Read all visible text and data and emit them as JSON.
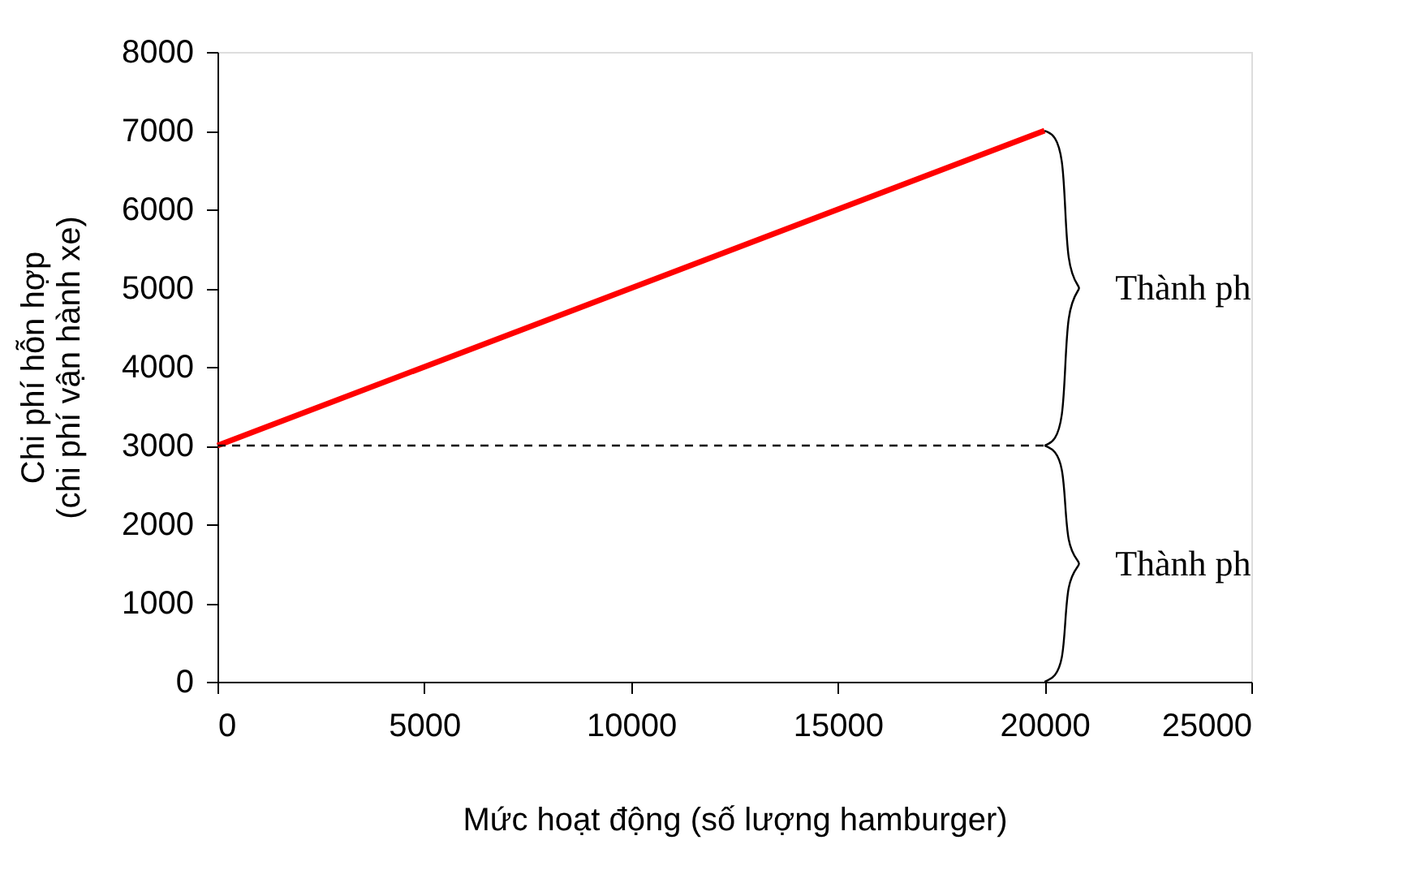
{
  "chart_data": {
    "type": "line",
    "xlabel": "Mức hoạt động (số lượng hamburger)",
    "ylabel": "Chi phí hỗn hợp\n(chi phí vận hành xe)",
    "series": [
      {
        "x": [
          0,
          20000
        ],
        "values": [
          3000,
          7000
        ],
        "color": "#ff0000"
      }
    ],
    "xlim": [
      0,
      25000
    ],
    "xticks": [
      0,
      5000,
      10000,
      15000,
      20000,
      25000
    ],
    "ylim": [
      0,
      8000
    ],
    "yticks": [
      0,
      1000,
      2000,
      3000,
      4000,
      5000,
      6000,
      7000,
      8000
    ],
    "ref_lines": [
      {
        "axis": "y",
        "value": 3000,
        "line_style": "dashed",
        "color": "#000000"
      }
    ],
    "annotations": [
      "Thành ph",
      "Thành ph"
    ],
    "grid": false,
    "marker": "none",
    "line_style": "solid"
  }
}
